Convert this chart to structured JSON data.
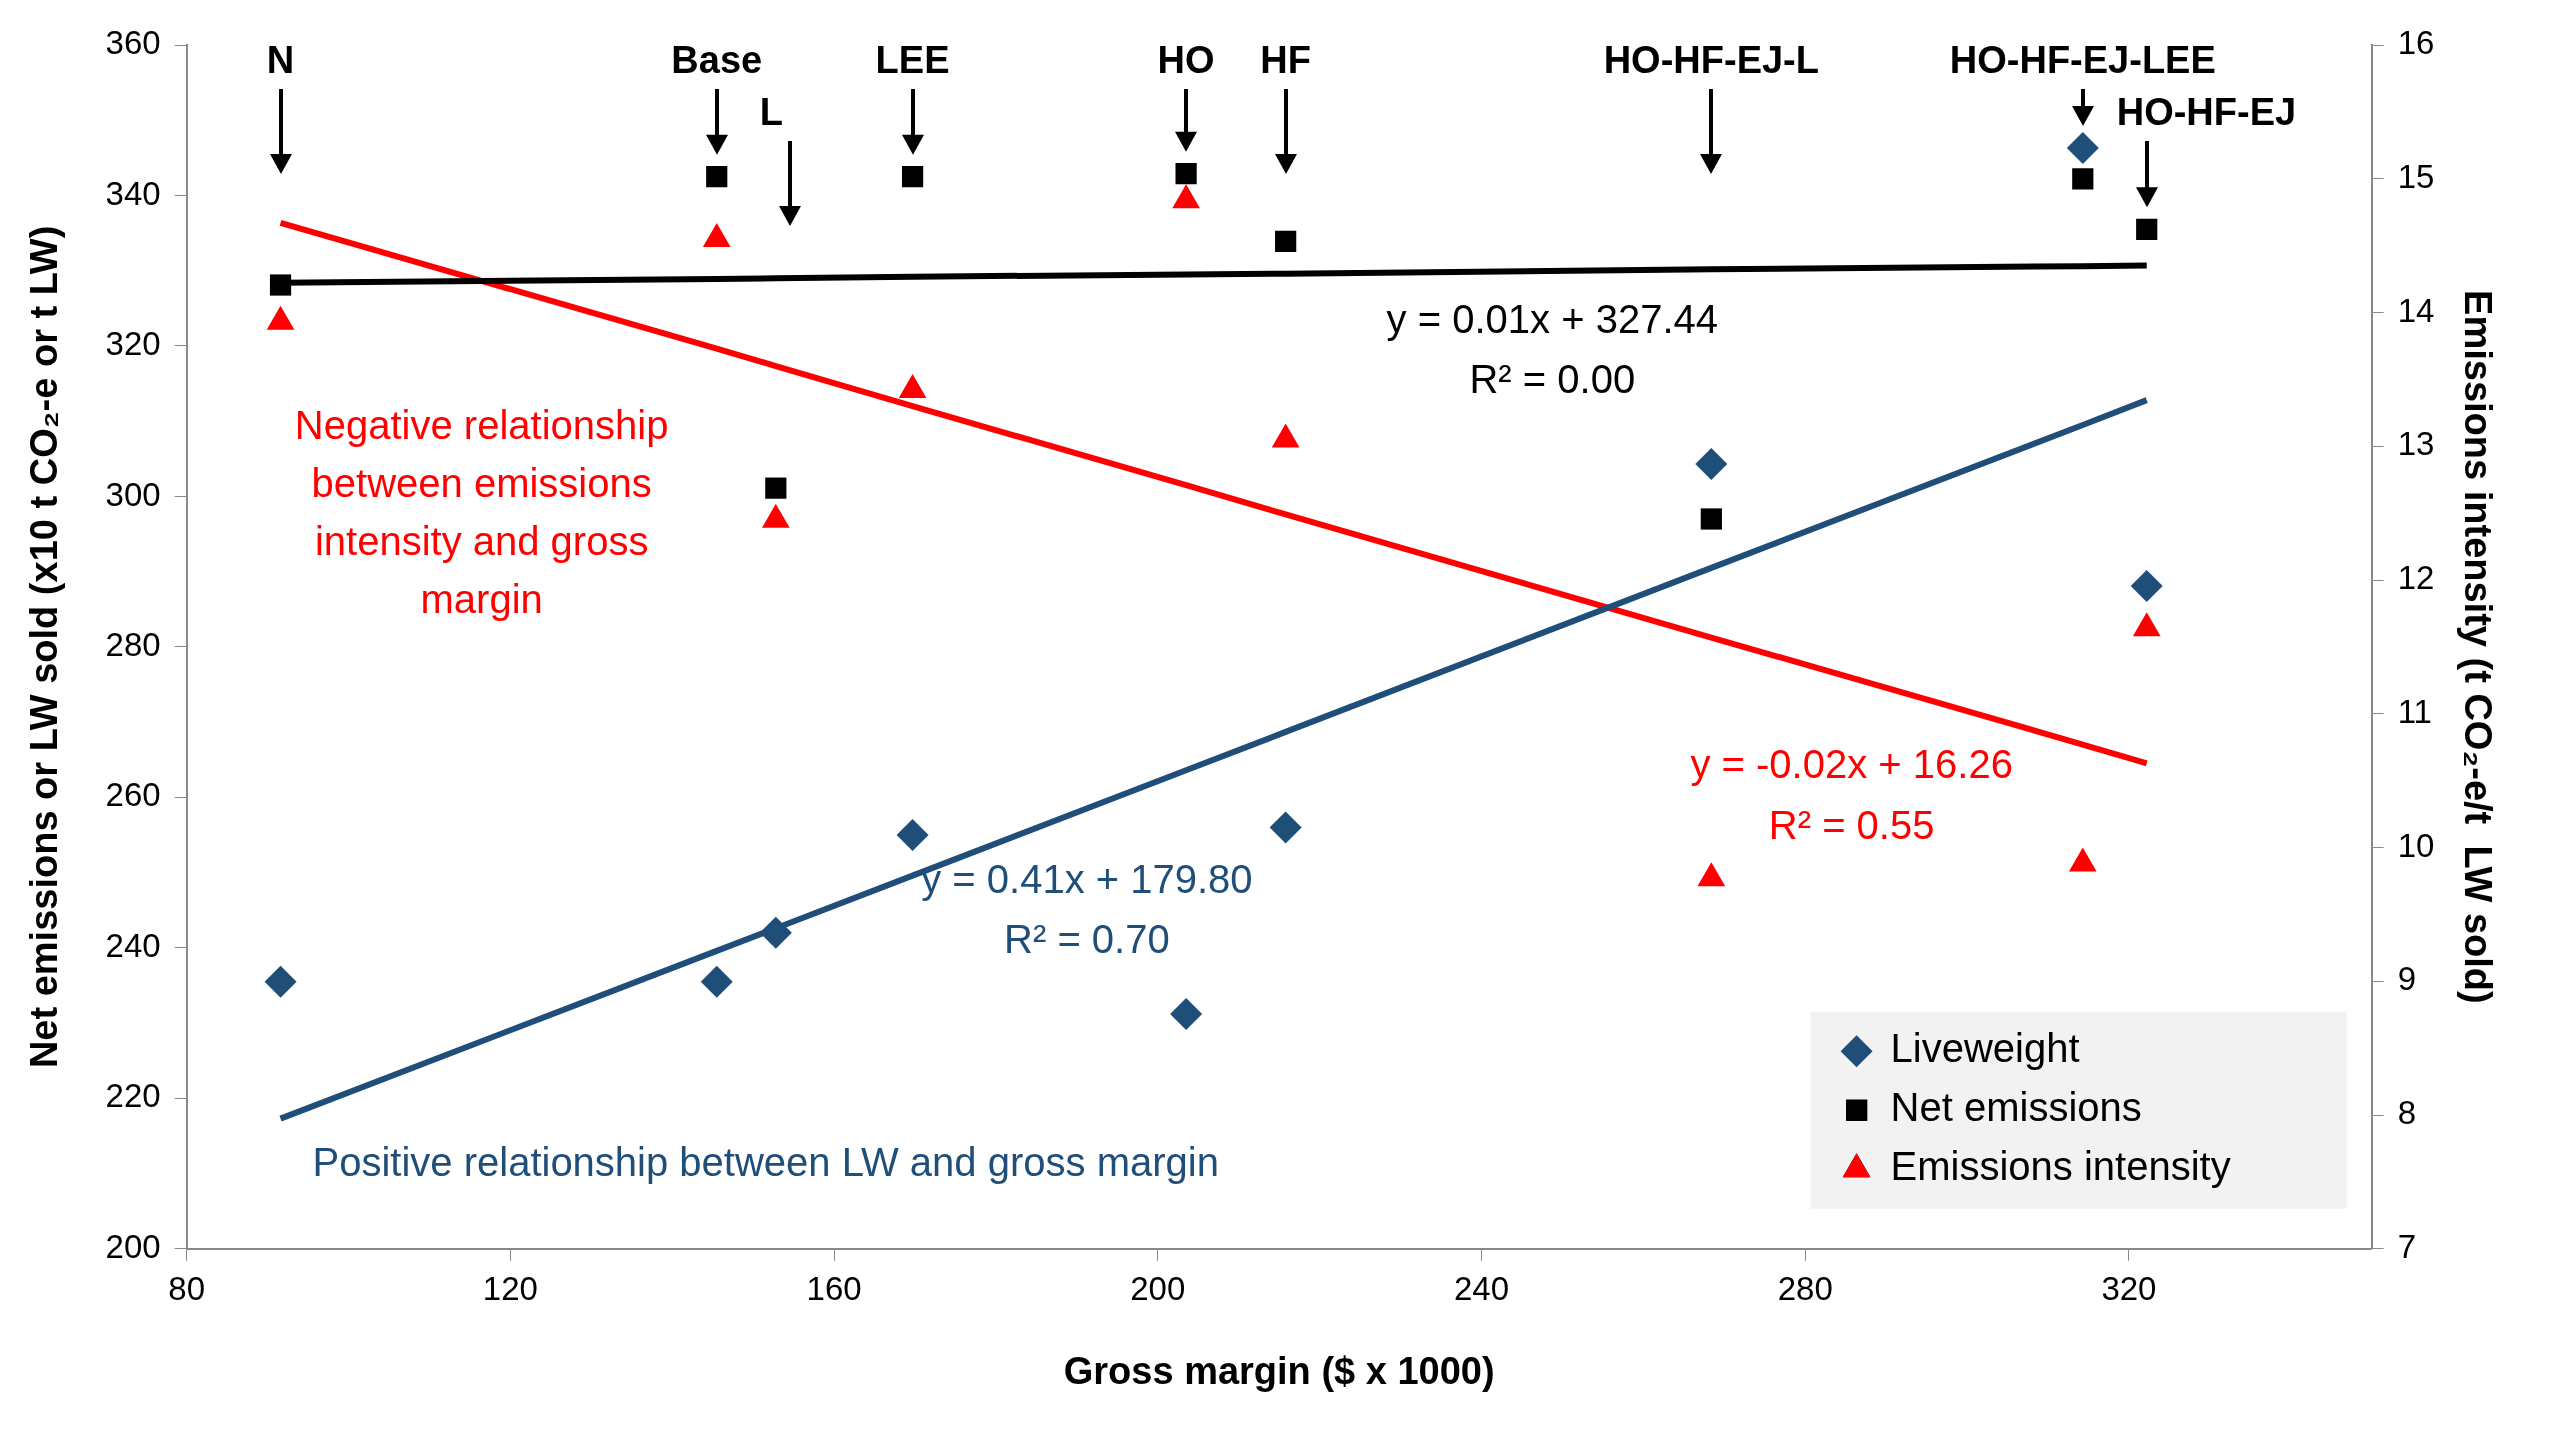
{
  "chart_data": {
    "type": "scatter",
    "xlabel": "Gross margin ($ x 1000)",
    "ylabel": "Net emissions or LW sold (x10 t CO₂-e or t LW)",
    "y2label": "Emissions intensity (t CO₂-e/t  LW sold)",
    "xlim": [
      80,
      350
    ],
    "xticks": [
      80,
      120,
      160,
      200,
      240,
      280,
      320
    ],
    "ylim": [
      200,
      360
    ],
    "yticks": [
      200,
      220,
      240,
      260,
      280,
      300,
      320,
      340,
      360
    ],
    "y2lim": [
      7,
      16
    ],
    "y2ticks": [
      7,
      8,
      9,
      10,
      11,
      12,
      13,
      14,
      15,
      16
    ],
    "grid": false,
    "legend": "bottom right",
    "x": [
      91.6,
      145.5,
      152.8,
      169.7,
      203.5,
      215.8,
      268.4,
      314.3,
      322.2
    ],
    "series": [
      {
        "name": "Liveweight",
        "color": "#1f4e79",
        "marker": "diamond",
        "values": [
          235.5,
          235.5,
          242,
          255,
          231.2,
          256,
          304.3,
          346.3,
          288.1
        ]
      },
      {
        "name": "Net emissions",
        "color": "#000000",
        "marker": "square",
        "values": [
          328.1,
          342.5,
          301.1,
          342.5,
          342.9,
          333.9,
          297,
          342.2,
          335.5
        ]
      },
      {
        "name": "Emissions intensity",
        "color": "#ff0000",
        "marker": "triangle",
        "axis": "y2",
        "values": [
          13.93,
          14.55,
          12.45,
          13.42,
          14.84,
          13.05,
          9.77,
          9.88,
          11.64
        ]
      },
      {
        "type": "line",
        "color": "#000000",
        "marker": "none",
        "values": [
          328.4,
          328.9,
          329.0,
          329.2,
          329.5,
          329.6,
          330.2,
          330.6,
          330.7
        ]
      },
      {
        "type": "line",
        "color": "#1f4e79",
        "marker": "none",
        "values": [
          217.3,
          239.6,
          242.6,
          249.6,
          263.6,
          268.7,
          290.5,
          309.5,
          312.8
        ]
      },
      {
        "type": "line",
        "color": "#ff0000",
        "marker": "none",
        "axis": "y2",
        "values": [
          14.67,
          13.73,
          13.6,
          13.3,
          12.71,
          12.49,
          11.57,
          10.77,
          10.63
        ]
      }
    ],
    "annotations": [
      "N",
      "Base",
      "L",
      "LEE",
      "HO",
      "HF",
      "HO-HF-EJ-L",
      "HO-HF-EJ-LEE",
      "HO-HF-EJ",
      "Negative relationship between emissions intensity and gross margin",
      "Positive relationship between LW and gross margin",
      "y = 0.01x + 327.44",
      "R² = 0.00",
      "y = 0.41x + 179.80",
      "R² = 0.70",
      "y = -0.02x + 16.26",
      "R² = 0.55"
    ]
  }
}
